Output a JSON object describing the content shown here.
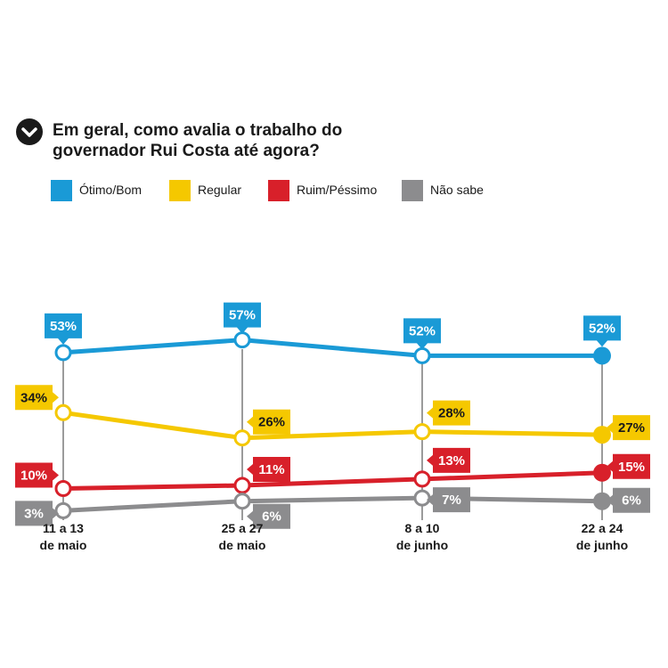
{
  "question": {
    "line1": "Em geral, como avalia o trabalho do",
    "line2": "governador Rui Costa até agora?",
    "icon": "chevron-down-icon"
  },
  "legend": [
    {
      "label": "Ótimo/Bom",
      "color": "#1a9ad6"
    },
    {
      "label": "Regular",
      "color": "#f5c800"
    },
    {
      "label": "Ruim/Péssimo",
      "color": "#d8202a"
    },
    {
      "label": "Não sabe",
      "color": "#8c8c8e"
    }
  ],
  "chart_data": {
    "type": "line",
    "categories": [
      [
        "11 a 13",
        "de maio"
      ],
      [
        "25 a 27",
        "de maio"
      ],
      [
        "8 a 10",
        "de junho"
      ],
      [
        "22 a 24",
        "de junho"
      ]
    ],
    "series": [
      {
        "name": "Ótimo/Bom",
        "color": "#1a9ad6",
        "values": [
          53,
          57,
          52,
          52
        ],
        "labels": [
          "53%",
          "57%",
          "52%",
          "52%"
        ]
      },
      {
        "name": "Regular",
        "color": "#f5c800",
        "values": [
          34,
          26,
          28,
          27
        ],
        "labels": [
          "34%",
          "26%",
          "28%",
          "27%"
        ]
      },
      {
        "name": "Ruim/Péssimo",
        "color": "#d8202a",
        "values": [
          10,
          11,
          13,
          15
        ],
        "labels": [
          "10%",
          "11%",
          "13%",
          "15%"
        ]
      },
      {
        "name": "Não sabe",
        "color": "#8c8c8e",
        "values": [
          3,
          6,
          7,
          6
        ],
        "labels": [
          "3%",
          "6%",
          "7%",
          "6%"
        ]
      }
    ],
    "ylim": [
      0,
      60
    ],
    "grid": false
  }
}
